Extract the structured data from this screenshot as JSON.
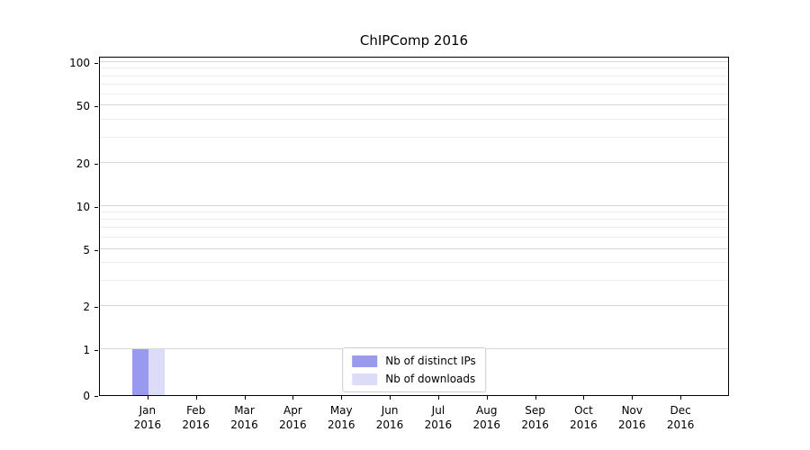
{
  "chart_data": {
    "type": "bar",
    "title": "ChIPComp 2016",
    "categories": [
      "Jan 2016",
      "Feb 2016",
      "Mar 2016",
      "Apr 2016",
      "May 2016",
      "Jun 2016",
      "Jul 2016",
      "Aug 2016",
      "Sep 2016",
      "Oct 2016",
      "Nov 2016",
      "Dec 2016"
    ],
    "series": [
      {
        "name": "Nb of distinct IPs",
        "color": "#9999ee",
        "values": [
          1,
          0,
          0,
          0,
          0,
          0,
          0,
          0,
          0,
          0,
          0,
          0
        ]
      },
      {
        "name": "Nb of downloads",
        "color": "#dcdcf8",
        "values": [
          1,
          0,
          0,
          0,
          0,
          0,
          0,
          0,
          0,
          0,
          0,
          0
        ]
      }
    ],
    "yscale": "symlog",
    "yticks": [
      0,
      1,
      2,
      5,
      10,
      20,
      50,
      100
    ],
    "ylim": [
      0,
      110
    ],
    "xlabel": "",
    "ylabel": "",
    "grid": true,
    "legend_position": "lower center"
  }
}
